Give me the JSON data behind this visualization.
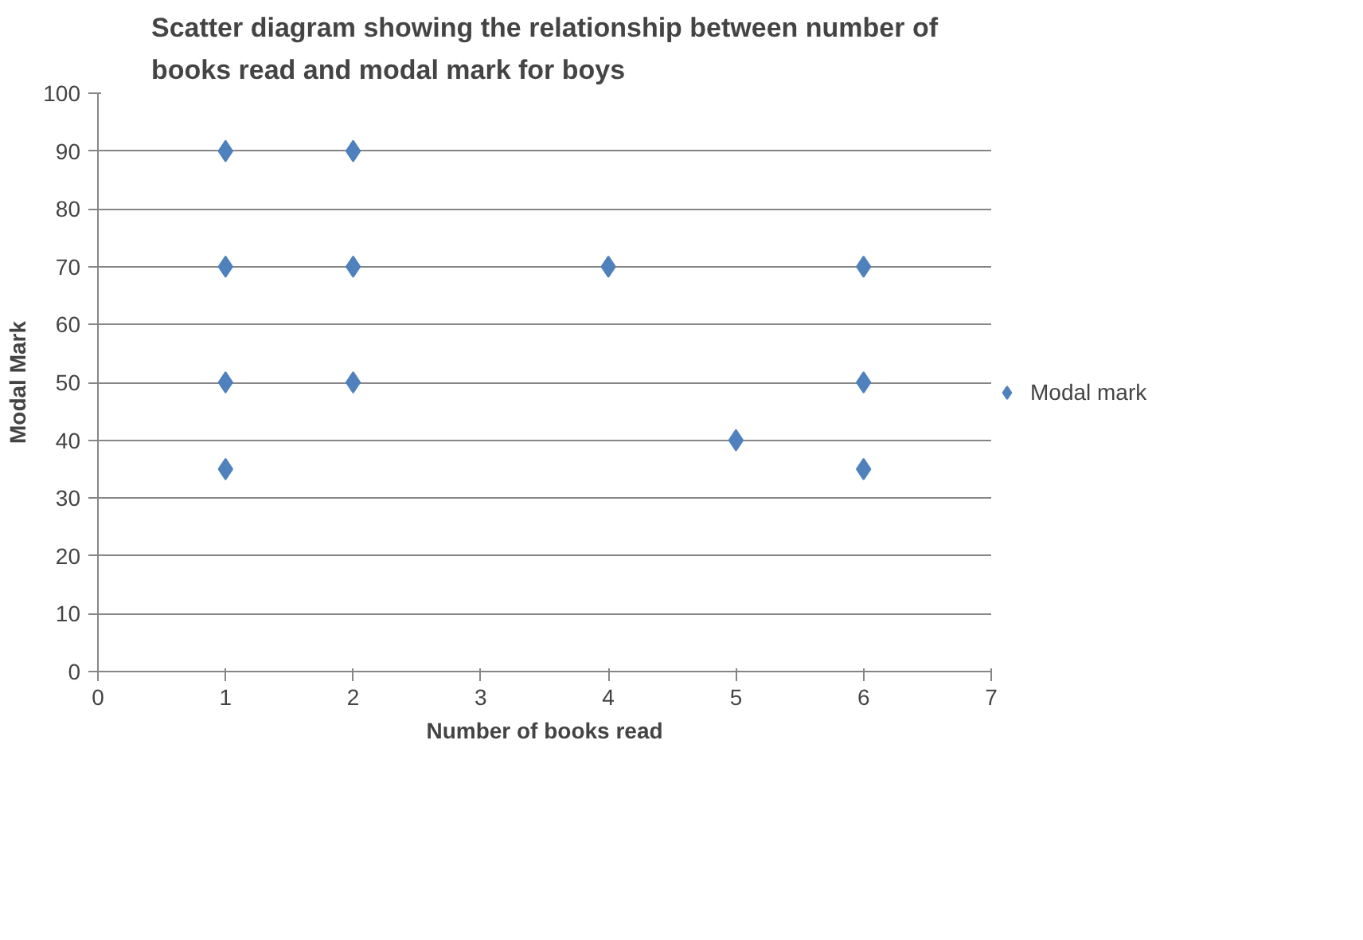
{
  "chart_data": {
    "type": "scatter",
    "title": "Scatter diagram showing the relationship between number of books read and modal mark for boys",
    "xlabel": "Number of books read",
    "ylabel": "Modal Mark",
    "x": [
      1,
      1,
      1,
      1,
      2,
      2,
      2,
      4,
      5,
      6,
      6,
      6
    ],
    "series": [
      {
        "name": "Modal mark",
        "color": "#4f81bd",
        "values": [
          90,
          70,
          50,
          35,
          90,
          70,
          50,
          70,
          40,
          70,
          50,
          35
        ]
      }
    ],
    "xlim": [
      0,
      7
    ],
    "xticks": [
      0,
      1,
      2,
      3,
      4,
      5,
      6,
      7
    ],
    "ylim": [
      0,
      100
    ],
    "yticks": [
      0,
      10,
      20,
      30,
      40,
      50,
      60,
      70,
      80,
      90,
      100
    ],
    "grid": "y",
    "legend": "right",
    "marker": "diamond"
  }
}
